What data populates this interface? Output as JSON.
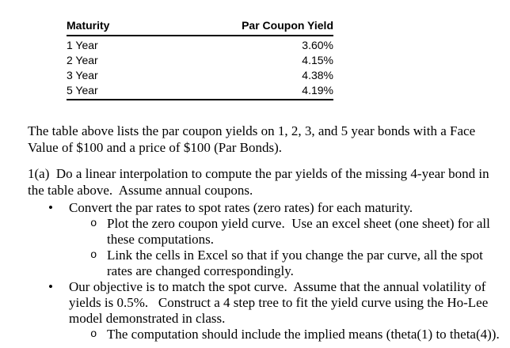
{
  "table": {
    "headers": {
      "maturity": "Maturity",
      "yield": "Par Coupon Yield"
    },
    "rows": [
      {
        "maturity": "1 Year",
        "yield": "3.60%"
      },
      {
        "maturity": "2 Year",
        "yield": "4.15%"
      },
      {
        "maturity": "3 Year",
        "yield": "4.38%"
      },
      {
        "maturity": "5 Year",
        "yield": "4.19%"
      }
    ]
  },
  "intro": {
    "text": "The table above lists the par coupon yields on 1, 2, 3, and 5 year bonds with a Face Value of $100 and a price of $100 (Par Bonds)."
  },
  "problem": {
    "heading": "1(a)  Do a linear interpolation to compute the par yields of the missing 4-year bond in the table above.  Assume annual coupons.",
    "bullets": [
      {
        "text": "Convert the par rates to spot rates (zero rates) for each maturity.",
        "sub": [
          "Plot the zero coupon yield curve.  Use an excel sheet (one sheet) for all these computations.",
          "Link the cells in Excel so that if you change the par curve, all the spot rates are changed correspondingly."
        ]
      },
      {
        "text": "Our objective is to match the spot curve.  Assume that the annual volatility of yields is 0.5%.   Construct a 4 step tree to fit the yield curve using the Ho-Lee model demonstrated in class.",
        "sub": [
          "The computation should include the implied means (theta(1) to theta(4))."
        ]
      }
    ]
  },
  "ui": {
    "bullet_char": "•",
    "sub_bullet_char": "o",
    "text_color": "#000000",
    "background_color": "#ffffff"
  }
}
